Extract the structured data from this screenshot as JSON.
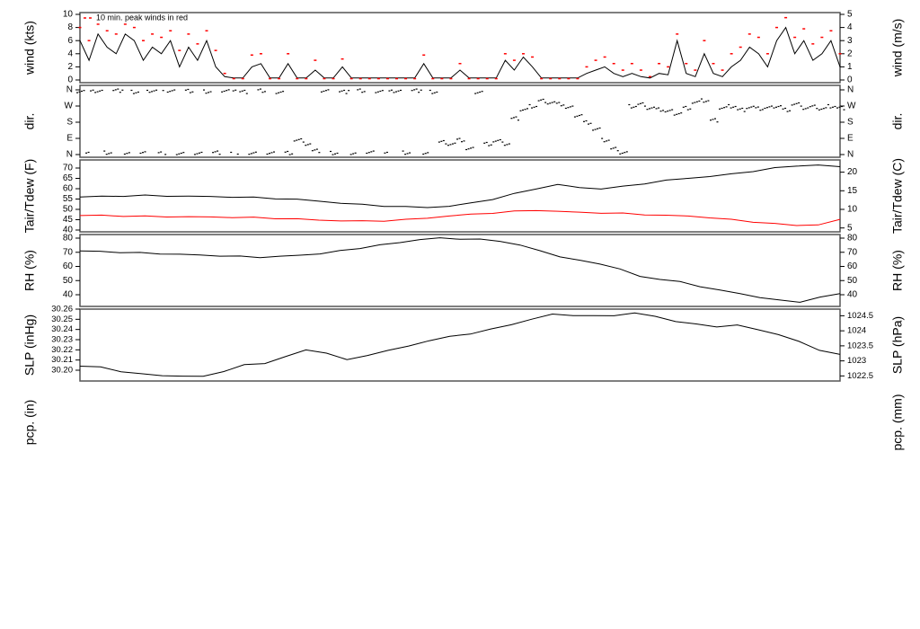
{
  "chart_data": [
    {
      "type": "line",
      "id": "wind",
      "ylabel_left": "wind (kts)",
      "ylabel_right": "wind (m/s)",
      "ylim": [
        0,
        10
      ],
      "yticks_left": [
        "0",
        "2",
        "4",
        "6",
        "8",
        "10"
      ],
      "yticks_right": [
        "0",
        "1",
        "2",
        "3",
        "4",
        "5"
      ],
      "annotation": "10 min. peak winds in red",
      "series": [
        {
          "role": "wind",
          "color": "#000000",
          "values": [
            6,
            3,
            7,
            5,
            4,
            7,
            6,
            3,
            5,
            4,
            6,
            2,
            5,
            3,
            6,
            2,
            0.5,
            0.3,
            0.3,
            2,
            2.5,
            0.3,
            0.3,
            2.5,
            0.3,
            0.3,
            1.5,
            0.3,
            0.3,
            2,
            0.3,
            0.3,
            0.3,
            0.3,
            0.3,
            0.3,
            0.3,
            0.3,
            2.5,
            0.3,
            0.3,
            0.3,
            1.5,
            0.3,
            0.3,
            0.3,
            0.3,
            3,
            1.5,
            3.5,
            2,
            0.3,
            0.3,
            0.3,
            0.3,
            0.3,
            1,
            1.5,
            2,
            1,
            0.5,
            1,
            0.5,
            0.3,
            1,
            0.8,
            6,
            1,
            0.5,
            4,
            1,
            0.5,
            2,
            3,
            5,
            4,
            2,
            6,
            8,
            4,
            6,
            3,
            4,
            6,
            2
          ]
        },
        {
          "role": "peak",
          "color": "#ff0000",
          "values": [
            8,
            6,
            8.5,
            7.5,
            7,
            8.5,
            8,
            6,
            7,
            6.5,
            7.5,
            4.5,
            7,
            5.5,
            7.5,
            4.5,
            1,
            0.2,
            0.2,
            3.8,
            4,
            0.2,
            0.2,
            4,
            0.2,
            0.2,
            3,
            0.2,
            0.2,
            3.2,
            0.2,
            0.2,
            0.2,
            0.2,
            0.2,
            0.2,
            0.2,
            0.2,
            3.8,
            0.2,
            0.2,
            0.2,
            2.5,
            0.2,
            0.2,
            0.2,
            0.2,
            4,
            3,
            4,
            3.5,
            0.2,
            0.2,
            0.2,
            0.2,
            0.2,
            2,
            3,
            3.5,
            2.5,
            1.5,
            2.5,
            1.5,
            0.5,
            2.5,
            2,
            7,
            2.5,
            1.5,
            6,
            2.5,
            1.5,
            4,
            5,
            7,
            6.5,
            4,
            8,
            9.5,
            6.5,
            7.8,
            5.5,
            6.5,
            7.5,
            4
          ]
        }
      ]
    },
    {
      "type": "scatter",
      "id": "dir",
      "ylabel_left": "dir.",
      "ylabel_right": "dir.",
      "ylim": [
        0,
        360
      ],
      "yticks_left": [
        "N",
        "E",
        "S",
        "W",
        "N"
      ],
      "yticks_right": [
        "N",
        "E",
        "S",
        "W",
        "N"
      ],
      "series": [
        {
          "role": "direction_deg",
          "color": "#000000",
          "values": [
            355,
            5,
            350,
            10,
            355,
            5,
            350,
            8,
            355,
            5,
            350,
            10,
            355,
            5,
            350,
            10,
            355,
            5,
            350,
            10,
            355,
            5,
            350,
            10,
            80,
            60,
            20,
            355,
            10,
            350,
            5,
            355,
            10,
            355,
            5,
            350,
            10,
            355,
            5,
            350,
            70,
            60,
            80,
            30,
            350,
            60,
            75,
            60,
            200,
            250,
            270,
            300,
            290,
            280,
            260,
            220,
            180,
            140,
            80,
            30,
            10,
            270,
            280,
            260,
            250,
            240,
            230,
            260,
            290,
            300,
            190,
            260,
            270,
            250,
            265,
            255,
            260,
            270,
            250,
            280,
            260,
            265,
            255,
            270,
            260
          ]
        }
      ]
    },
    {
      "type": "line",
      "id": "temp",
      "ylabel_left": "Tair/Tdew (F)",
      "ylabel_right": "Tair/Tdew (C)",
      "ylim": [
        39,
        72
      ],
      "yticks_left": [
        "40",
        "45",
        "50",
        "55",
        "60",
        "65",
        "70"
      ],
      "yticks_right": [
        "5",
        "10",
        "15",
        "20"
      ],
      "series": [
        {
          "role": "Tair",
          "color": "#000000",
          "values": [
            56,
            56.3,
            56.5,
            56.7,
            56.5,
            56.3,
            56.2,
            56,
            55.7,
            55.3,
            54.8,
            54,
            53,
            52.3,
            51.7,
            51.2,
            51,
            51.5,
            53,
            55,
            57.5,
            60,
            62,
            60.5,
            60,
            61,
            62.5,
            64,
            65,
            66,
            67,
            68.5,
            70,
            71,
            71.5,
            70.5
          ]
        },
        {
          "role": "Tdew",
          "color": "#ff0000",
          "values": [
            47,
            47.1,
            46.8,
            46.6,
            46.5,
            46.4,
            46.3,
            46.2,
            46,
            45.7,
            45.3,
            44.8,
            44.5,
            44.3,
            44.5,
            45,
            45.8,
            46.8,
            47.6,
            48.3,
            49,
            49.6,
            49,
            48.6,
            48.3,
            48,
            47.5,
            47,
            46.8,
            46,
            45,
            44,
            43,
            42.3,
            42.5,
            45
          ]
        }
      ]
    },
    {
      "type": "line",
      "id": "rh",
      "ylabel_left": "RH (%)",
      "ylabel_right": "RH (%)",
      "ylim": [
        35,
        80
      ],
      "yticks_left": [
        "40",
        "50",
        "60",
        "70",
        "80"
      ],
      "yticks_right": [
        "40",
        "50",
        "60",
        "70",
        "80"
      ],
      "series": [
        {
          "role": "RH",
          "color": "#000000",
          "values": [
            71,
            70.5,
            70,
            69.5,
            69,
            68.5,
            68,
            67.5,
            67,
            66.5,
            67,
            68,
            69,
            71,
            73,
            75,
            77,
            79,
            80,
            79.5,
            79,
            78,
            75,
            71,
            67,
            64,
            62,
            58,
            53,
            51,
            49,
            46,
            43,
            41,
            38,
            36,
            35,
            38,
            41
          ]
        }
      ]
    },
    {
      "type": "line",
      "id": "slp",
      "ylabel_left": "SLP (inHg)",
      "ylabel_right": "SLP (hPa)",
      "ylim": [
        30.191,
        30.26
      ],
      "yticks_left": [
        "30.20",
        "30.21",
        "30.22",
        "30.23",
        "30.24",
        "30.25",
        "30.26"
      ],
      "yticks_right": [
        "1022.5",
        "1023",
        "1023.5",
        "1024",
        "1024.5"
      ],
      "series": [
        {
          "role": "SLP",
          "color": "#000000",
          "values": [
            30.204,
            30.203,
            30.199,
            30.196,
            30.195,
            30.194,
            30.194,
            30.199,
            30.205,
            30.207,
            30.213,
            30.22,
            30.217,
            30.21,
            30.215,
            30.219,
            30.224,
            30.229,
            30.233,
            30.236,
            30.24,
            30.245,
            30.25,
            30.255,
            30.254,
            30.253,
            30.254,
            30.256,
            30.253,
            30.248,
            30.245,
            30.243,
            30.244,
            30.24,
            30.235,
            30.228,
            30.22,
            30.215
          ]
        }
      ]
    },
    {
      "type": "line",
      "id": "pcp",
      "ylabel_left": "pcp. (in)",
      "ylabel_right": "pcp. (mm)",
      "series": []
    }
  ]
}
